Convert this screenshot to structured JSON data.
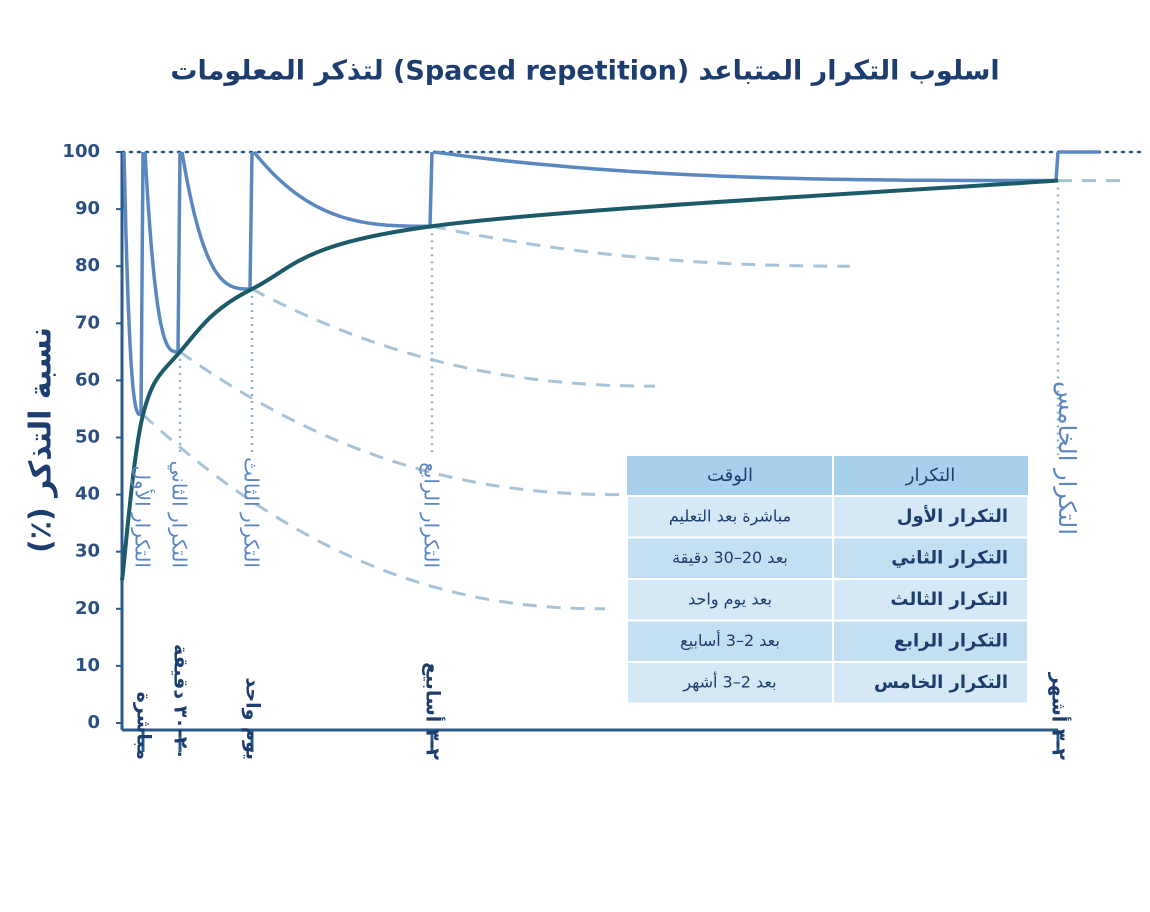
{
  "chart_data": {
    "type": "line",
    "title": "اسلوب التكرار المتباعد (Spaced repetition) لتذكر المعلومات",
    "y_label": "نسبة التذكر (٪)",
    "ylim": [
      0,
      100
    ],
    "yticks": [
      0,
      10,
      20,
      30,
      40,
      50,
      60,
      70,
      80,
      90,
      100
    ],
    "categories": [
      null,
      "مباشرة",
      "٢٠-٣٠ دقيقة",
      "يوم واحد",
      "٢-٣ أسابيع",
      "٢-٣ أشهر"
    ],
    "review_labels": [
      null,
      "التكرار الأول",
      "التكرار الثاني",
      "التكرار الثالث",
      "التكرار الرابع",
      "التكرار الخامس"
    ],
    "series": [
      {
        "color": "#5b87c0",
        "values": [
          100,
          100,
          100,
          100,
          100,
          100
        ]
      },
      {
        "color": "#5b87c0",
        "values": [
          null,
          54,
          65,
          76,
          87,
          95
        ]
      },
      {
        "color": "#1c5a6a",
        "values": [
          25,
          54,
          65,
          76,
          87,
          95
        ]
      }
    ],
    "forgetting_curve_ends": [
      null,
      20,
      40,
      59,
      80,
      95
    ],
    "forgetting_curve_color": "#a9c3d6"
  },
  "table": {
    "headers": [
      "التكرار",
      "الوقت"
    ],
    "rows": [
      [
        "التكرار الأول",
        "مباشرة بعد التعليم"
      ],
      [
        "التكرار الثاني",
        "بعد 20–30 دقيقة"
      ],
      [
        "التكرار الثالث",
        "بعد يوم واحد"
      ],
      [
        "التكرار الرابع",
        "بعد 2–3 أسابيع"
      ],
      [
        "التكرار الخامس",
        "بعد 2–3 أشهر"
      ]
    ]
  }
}
